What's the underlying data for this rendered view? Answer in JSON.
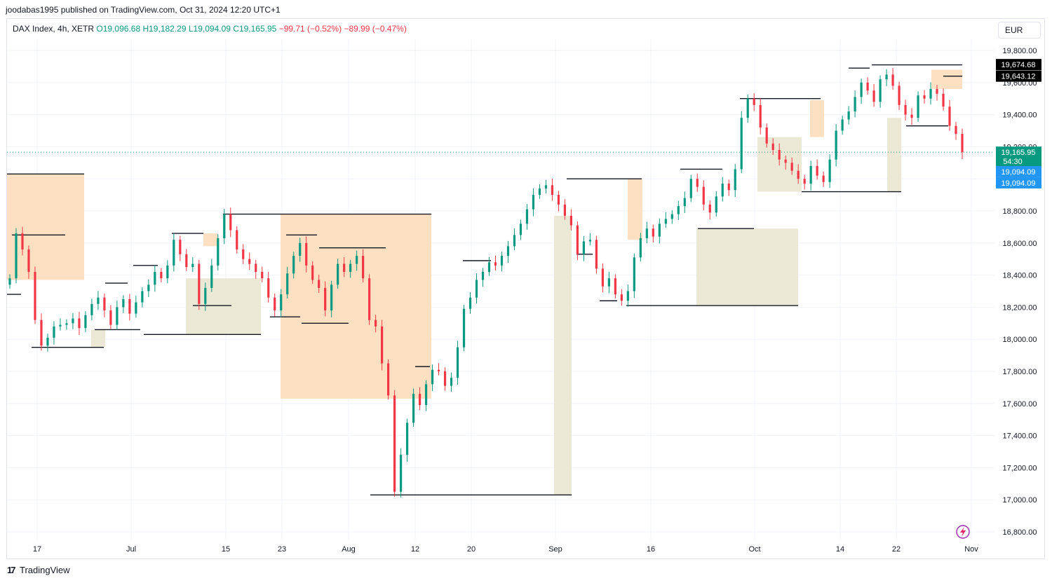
{
  "header": {
    "published": "joodabas1995 published on TradingView.com, Oct 31, 2024 12:20 UTC+1"
  },
  "legend": {
    "symbol": "DAX Index, 4h, XETR",
    "open": "O19,096.68",
    "high": "H19,182.29",
    "low": "L19,094.09",
    "close": "C19,165.95",
    "change": "−99.71 (−0.52%)",
    "extra": "−89.99 (−0.47%)"
  },
  "currency": "EUR",
  "footer": {
    "brand": "TradingView"
  },
  "colors": {
    "up": "#089981",
    "down": "#f23645",
    "supply_zone": "#fde0c2",
    "demand_zone": "#ebe9d6",
    "level": "#131722",
    "price_tag": "#089981",
    "low_tag": "#2196f3",
    "grid": "#f0f3fa"
  },
  "chart_data": {
    "type": "candlestick",
    "title": "DAX Index, 4h, XETR",
    "interval": "4h",
    "ylim": [
      16750,
      19900
    ],
    "y_ticks": [
      "19,800.00",
      "19,600.00",
      "19,400.00",
      "19,200.00",
      "19,000.00",
      "18,800.00",
      "18,600.00",
      "18,400.00",
      "18,200.00",
      "18,000.00",
      "17,800.00",
      "17,600.00",
      "17,400.00",
      "17,200.00",
      "17,000.00",
      "16,800.00"
    ],
    "x_ticks": [
      "17",
      "Jul",
      "15",
      "23",
      "Aug",
      "12",
      "20",
      "Sep",
      "16",
      "Oct",
      "14",
      "22",
      "Nov"
    ],
    "grid": true,
    "price_labels": {
      "last_price": "19,165.95",
      "countdown": "54:30",
      "low_1": "19,094.09",
      "low_2": "19,094.09",
      "level_1": "19,674.68",
      "level_2": "19,643.12"
    },
    "series_close": [
      18380,
      18660,
      18560,
      18420,
      18120,
      17960,
      18010,
      18080,
      18090,
      18100,
      18130,
      18070,
      18150,
      18220,
      18260,
      18180,
      18090,
      18200,
      18250,
      18160,
      18230,
      18300,
      18340,
      18420,
      18380,
      18460,
      18620,
      18530,
      18450,
      18470,
      18220,
      18320,
      18460,
      18630,
      18780,
      18680,
      18560,
      18500,
      18470,
      18420,
      18380,
      18260,
      18180,
      18280,
      18410,
      18520,
      18600,
      18460,
      18370,
      18320,
      18180,
      18340,
      18470,
      18420,
      18470,
      18520,
      18380,
      18120,
      18080,
      17850,
      17650,
      17050,
      17280,
      17480,
      17660,
      17590,
      17720,
      17810,
      17800,
      17710,
      17760,
      17950,
      18190,
      18260,
      18370,
      18420,
      18480,
      18460,
      18520,
      18580,
      18650,
      18720,
      18810,
      18900,
      18940,
      18960,
      18900,
      18840,
      18770,
      18710,
      18530,
      18610,
      18620,
      18440,
      18330,
      18380,
      18280,
      18240,
      18300,
      18510,
      18630,
      18690,
      18640,
      18720,
      18750,
      18780,
      18830,
      18880,
      19000,
      18950,
      18840,
      18790,
      18890,
      18970,
      18930,
      19060,
      19380,
      19500,
      19460,
      19320,
      19220,
      19180,
      19120,
      19100,
      19050,
      19000,
      18970,
      19080,
      19020,
      18980,
      19120,
      19300,
      19370,
      19420,
      19510,
      19600,
      19550,
      19480,
      19620,
      19650,
      19580,
      19460,
      19400,
      19380,
      19520,
      19500,
      19560,
      19530,
      19450,
      19330,
      19280,
      19166
    ]
  }
}
